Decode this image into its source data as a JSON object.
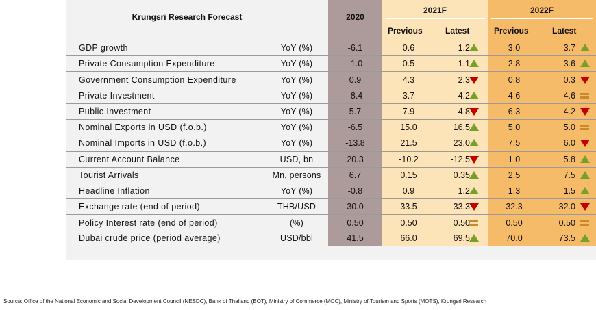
{
  "table": {
    "title": "Krungsri Research Forecast",
    "col_2020": "2020",
    "col_2021": "2021F",
    "col_2022": "2022F",
    "sub_previous": "Previous",
    "sub_latest": "Latest"
  },
  "colors": {
    "2020": "#ad9a9a",
    "2021F": "#fde4b8",
    "2022F": "#f6bb69",
    "up": "#77a02b",
    "down": "#c00000",
    "unchanged": "#c68a2a"
  },
  "chart_data": {
    "type": "table",
    "title": "Krungsri Research Forecast",
    "columns": [
      "2020",
      "2021F Previous",
      "2021F Latest",
      "2022F Previous",
      "2022F Latest"
    ],
    "rows": [
      {
        "name": "GDP growth",
        "unit": "YoY (%)",
        "v2020": "-6.1",
        "p21": "0.6",
        "l21": "1.2",
        "d21": "up",
        "p22": "3.0",
        "l22": "3.7",
        "d22": "up"
      },
      {
        "name": "Private Consumption Expenditure",
        "unit": "YoY (%)",
        "v2020": "-1.0",
        "p21": "0.5",
        "l21": "1.1",
        "d21": "up",
        "p22": "2.8",
        "l22": "3.6",
        "d22": "up"
      },
      {
        "name": "Government Consumption Expenditure",
        "unit": "YoY (%)",
        "v2020": "0.9",
        "p21": "4.3",
        "l21": "2.3",
        "d21": "down",
        "p22": "0.8",
        "l22": "0.3",
        "d22": "down"
      },
      {
        "name": "Private Investment",
        "unit": "YoY (%)",
        "v2020": "-8.4",
        "p21": "3.7",
        "l21": "4.2",
        "d21": "up",
        "p22": "4.6",
        "l22": "4.6",
        "d22": "unchanged"
      },
      {
        "name": "Public Investment",
        "unit": "YoY (%)",
        "v2020": "5.7",
        "p21": "7.9",
        "l21": "4.8",
        "d21": "down",
        "p22": "6.3",
        "l22": "4.2",
        "d22": "down"
      },
      {
        "name": "Nominal Exports in USD (f.o.b.)",
        "unit": "YoY (%)",
        "v2020": "-6.5",
        "p21": "15.0",
        "l21": "16.5",
        "d21": "up",
        "p22": "5.0",
        "l22": "5.0",
        "d22": "unchanged"
      },
      {
        "name": "Nominal Imports in USD (f.o.b.)",
        "unit": "YoY (%)",
        "v2020": "-13.8",
        "p21": "21.5",
        "l21": "23.0",
        "d21": "up",
        "p22": "7.5",
        "l22": "6.0",
        "d22": "down"
      },
      {
        "name": "Current Account Balance",
        "unit": "USD, bn",
        "v2020": "20.3",
        "p21": "-10.2",
        "l21": "-12.5",
        "d21": "down",
        "p22": "1.0",
        "l22": "5.8",
        "d22": "up"
      },
      {
        "name": "Tourist Arrivals",
        "unit": "Mn, persons",
        "v2020": "6.7",
        "p21": "0.15",
        "l21": "0.35",
        "d21": "up",
        "p22": "2.5",
        "l22": "7.5",
        "d22": "up"
      },
      {
        "name": "Headline Inflation",
        "unit": "YoY (%)",
        "v2020": "-0.8",
        "p21": "0.9",
        "l21": "1.2",
        "d21": "up",
        "p22": "1.3",
        "l22": "1.5",
        "d22": "up"
      },
      {
        "name": "Exchange rate (end of period)",
        "unit": "THB/USD",
        "v2020": "30.0",
        "p21": "33.5",
        "l21": "33.3",
        "d21": "down",
        "p22": "32.3",
        "l22": "32.0",
        "d22": "down"
      },
      {
        "name": "Policy Interest rate (end of period)",
        "unit": "(%)",
        "v2020": "0.50",
        "p21": "0.50",
        "l21": "0.50",
        "d21": "unchanged",
        "p22": "0.50",
        "l22": "0.50",
        "d22": "unchanged"
      },
      {
        "name": "Dubai crude price (period average)",
        "unit": "USD/bbl",
        "v2020": "41.5",
        "p21": "66.0",
        "l21": "69.5",
        "d21": "up",
        "p22": "70.0",
        "l22": "73.5",
        "d22": "up"
      }
    ]
  },
  "source": "Source: Office of the National Economic and Social Development Council (NESDC), Bank of Thailand (BOT), Ministry of Commerce (MOC), Ministry of Tourism and Sports (MOTS), Krungsri Research"
}
